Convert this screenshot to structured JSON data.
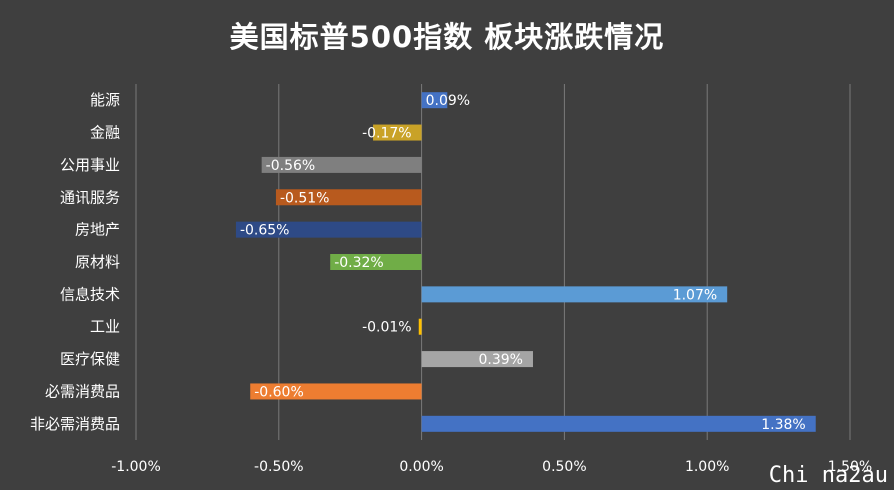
{
  "chart_data": {
    "type": "bar",
    "orientation": "horizontal",
    "title": "美国标普500指数 板块涨跌情况",
    "categories": [
      "能源",
      "金融",
      "公用事业",
      "通讯服务",
      "房地产",
      "原材料",
      "信息技术",
      "工业",
      "医疗保健",
      "必需消费品",
      "非必需消费品"
    ],
    "values": [
      0.09,
      -0.17,
      -0.56,
      -0.51,
      -0.65,
      -0.32,
      1.07,
      -0.01,
      0.39,
      -0.6,
      1.38
    ],
    "value_labels": [
      "0.09%",
      "-0.17%",
      "-0.56%",
      "-0.51%",
      "-0.65%",
      "-0.32%",
      "1.07%",
      "-0.01%",
      "0.39%",
      "-0.60%",
      "1.38%"
    ],
    "colors": [
      "#4472c4",
      "#c9a227",
      "#7f7f7f",
      "#b85a1e",
      "#2e4a86",
      "#70ad47",
      "#5b9bd5",
      "#ffc000",
      "#a5a5a5",
      "#ed7d31",
      "#4472c4"
    ],
    "xlim": [
      -1.0,
      1.5
    ],
    "x_ticks": [
      -1.0,
      -0.5,
      0.0,
      0.5,
      1.0,
      1.5
    ],
    "x_tick_labels": [
      "-1.00%",
      "-0.50%",
      "0.00%",
      "0.50%",
      "1.00%",
      "1.50%"
    ],
    "xlabel": "",
    "ylabel": "",
    "grid": true,
    "legend": "none",
    "background": "#3f3f3f"
  },
  "watermark": "Chi na2au"
}
